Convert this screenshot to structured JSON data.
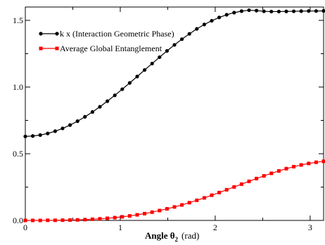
{
  "chart_data": {
    "type": "line",
    "title": "",
    "xlabel": "Angle θ",
    "xlabel_sub": "2",
    "xlabel_unit": "(rad)",
    "ylabel": "",
    "xlim": [
      0,
      3.14159
    ],
    "ylim": [
      0,
      1.6
    ],
    "x_ticks": [
      0,
      1,
      2,
      3
    ],
    "x_tick_labels": [
      "0",
      "1",
      "2",
      "3"
    ],
    "y_ticks": [
      0,
      0.5,
      1.0,
      1.5
    ],
    "y_tick_labels": [
      "0.0",
      "0.5",
      "1.0",
      "1.5"
    ],
    "grid": false,
    "legend_position": "top-left",
    "series": [
      {
        "name": "k x (Interaction Geometric Phase)",
        "color": "#000000",
        "marker": "circle",
        "x": [
          0.0,
          0.0785,
          0.1571,
          0.2356,
          0.3142,
          0.3927,
          0.4712,
          0.5498,
          0.6283,
          0.7069,
          0.7854,
          0.8639,
          0.9425,
          1.021,
          1.0996,
          1.1781,
          1.2566,
          1.3352,
          1.4137,
          1.4923,
          1.5708,
          1.6493,
          1.7279,
          1.8064,
          1.885,
          1.9635,
          2.042,
          2.1206,
          2.1991,
          2.2777,
          2.3562,
          2.4347,
          2.5133,
          2.5918,
          2.6704,
          2.7489,
          2.8274,
          2.906,
          2.9845,
          3.0631,
          3.1416
        ],
        "y": [
          0.63,
          0.633,
          0.64,
          0.652,
          0.669,
          0.69,
          0.715,
          0.744,
          0.777,
          0.813,
          0.852,
          0.894,
          0.938,
          0.984,
          1.031,
          1.079,
          1.128,
          1.176,
          1.224,
          1.271,
          1.316,
          1.359,
          1.399,
          1.436,
          1.469,
          1.497,
          1.522,
          1.542,
          1.558,
          1.569,
          1.576,
          1.573,
          1.568,
          1.566,
          1.566,
          1.567,
          1.568,
          1.569,
          1.57,
          1.57,
          1.571
        ]
      },
      {
        "name": "Average Global Entanglement",
        "color": "#ff0000",
        "marker": "square",
        "x": [
          0.0,
          0.0785,
          0.1571,
          0.2356,
          0.3142,
          0.3927,
          0.4712,
          0.5498,
          0.6283,
          0.7069,
          0.7854,
          0.8639,
          0.9425,
          1.021,
          1.0996,
          1.1781,
          1.2566,
          1.3352,
          1.4137,
          1.4923,
          1.5708,
          1.6493,
          1.7279,
          1.8064,
          1.885,
          1.9635,
          2.042,
          2.1206,
          2.1991,
          2.2777,
          2.3562,
          2.4347,
          2.5133,
          2.5918,
          2.6704,
          2.7489,
          2.8274,
          2.906,
          2.9845,
          3.0631,
          3.1416
        ],
        "y": [
          0.0,
          0.0,
          0.0,
          0.001,
          0.001,
          0.002,
          0.003,
          0.004,
          0.006,
          0.009,
          0.012,
          0.016,
          0.021,
          0.027,
          0.034,
          0.042,
          0.051,
          0.062,
          0.074,
          0.087,
          0.101,
          0.116,
          0.133,
          0.151,
          0.169,
          0.189,
          0.209,
          0.23,
          0.251,
          0.272,
          0.293,
          0.314,
          0.334,
          0.353,
          0.371,
          0.388,
          0.403,
          0.416,
          0.427,
          0.436,
          0.443
        ]
      }
    ]
  }
}
